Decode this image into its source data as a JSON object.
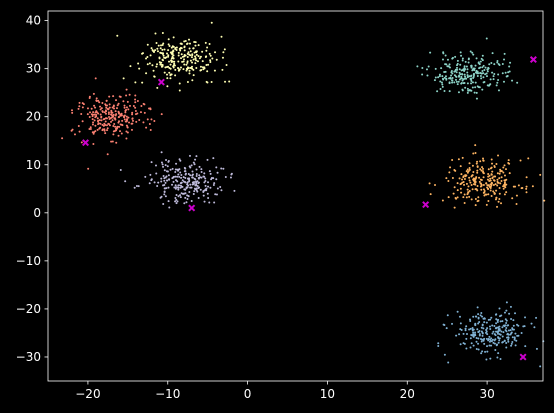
{
  "chart_data": {
    "type": "scatter",
    "title": "",
    "xlabel": "",
    "ylabel": "",
    "xlim": [
      -25,
      37
    ],
    "ylim": [
      -35,
      42
    ],
    "xticks": [
      -20,
      -10,
      0,
      10,
      20,
      30
    ],
    "yticks": [
      -30,
      -20,
      -10,
      0,
      10,
      20,
      30,
      40
    ],
    "xtick_labels": [
      "−20",
      "−10",
      "0",
      "10",
      "20",
      "30"
    ],
    "ytick_labels": [
      "−30",
      "−20",
      "−10",
      "0",
      "10",
      "20",
      "30",
      "40"
    ],
    "grid": false,
    "legend": "none",
    "background": "#000000",
    "axis_color": "#ffffff",
    "clusters": [
      {
        "center_x": -8.5,
        "center_y": 32,
        "spread_x": 2.4,
        "spread_y": 2.3,
        "count": 250,
        "color": "#ffffb3"
      },
      {
        "center_x": -17,
        "center_y": 20,
        "spread_x": 2.4,
        "spread_y": 2.3,
        "count": 250,
        "color": "#fb8072"
      },
      {
        "center_x": -7.5,
        "center_y": 6.5,
        "spread_x": 2.4,
        "spread_y": 2.3,
        "count": 250,
        "color": "#bebada"
      },
      {
        "center_x": 27.5,
        "center_y": 29,
        "spread_x": 2.4,
        "spread_y": 2.0,
        "count": 250,
        "color": "#8dd3c7"
      },
      {
        "center_x": 29.5,
        "center_y": 6.5,
        "spread_x": 2.4,
        "spread_y": 2.3,
        "count": 250,
        "color": "#fdb462"
      },
      {
        "center_x": 30.5,
        "center_y": -25,
        "spread_x": 2.4,
        "spread_y": 2.3,
        "count": 250,
        "color": "#80b1d3"
      }
    ],
    "centroids": {
      "marker": "x",
      "color": "#cc00cc",
      "points": [
        {
          "x": -10.8,
          "y": 27.2
        },
        {
          "x": -20.3,
          "y": 14.6
        },
        {
          "x": -7,
          "y": 1
        },
        {
          "x": 22.3,
          "y": 1.7
        },
        {
          "x": 35.8,
          "y": 31.9
        },
        {
          "x": 34.5,
          "y": -30
        }
      ]
    }
  }
}
